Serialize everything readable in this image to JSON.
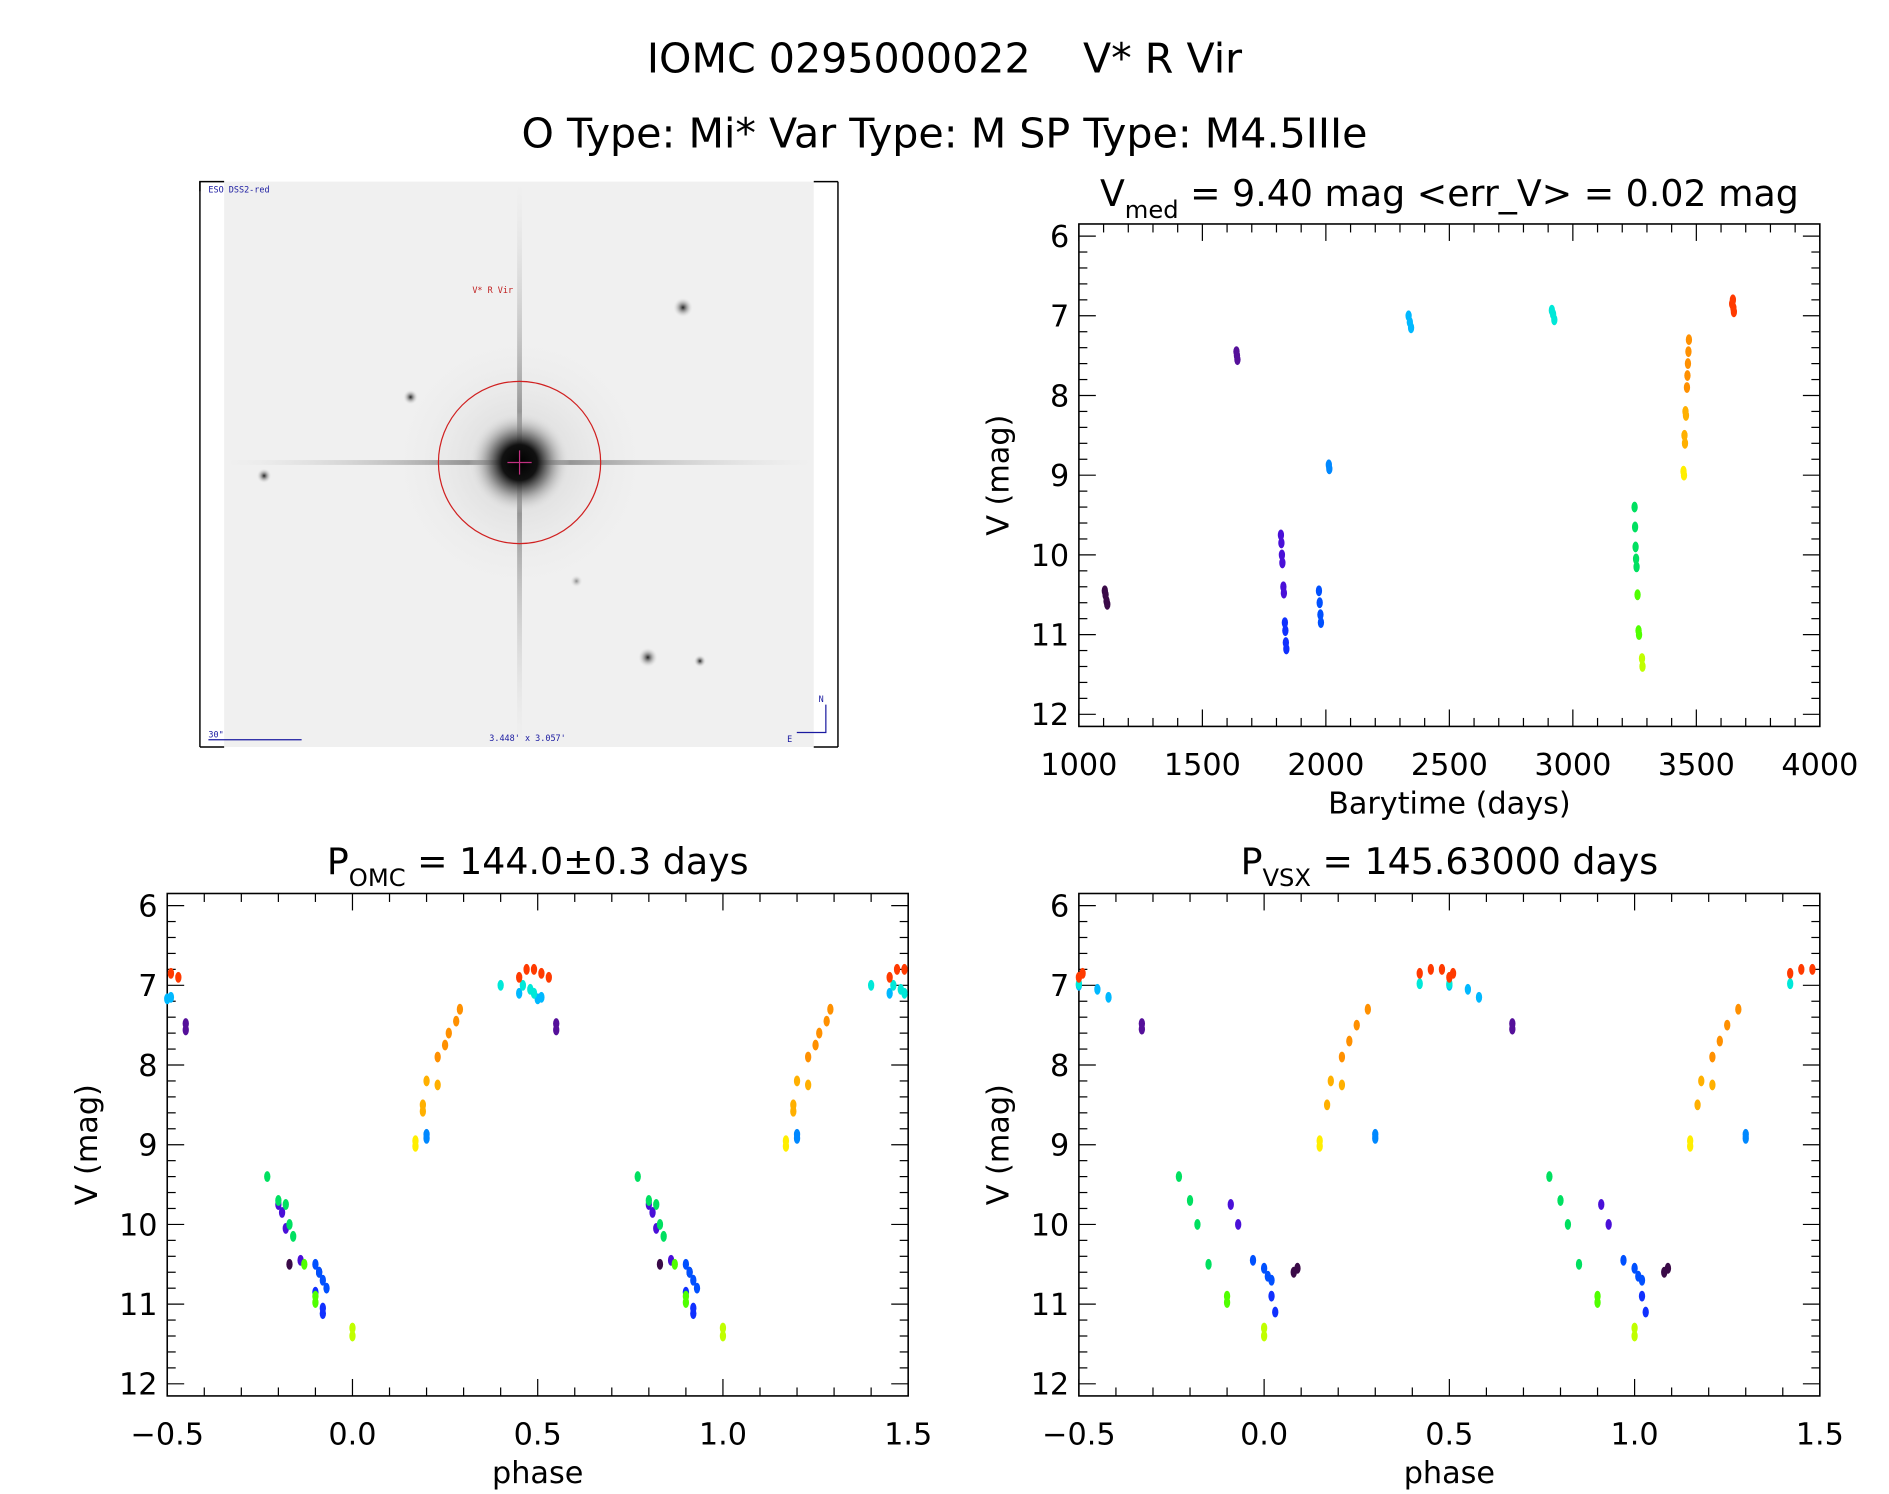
{
  "header": {
    "title": "IOMC 0295000022    V* R Vir",
    "subtitle": "O Type: Mi*  Var Type: M  SP Type: M4.5IIIe"
  },
  "image_panel": {
    "survey_label": "ESO DSS2-red",
    "object_label": "V* R Vir",
    "scale_label": "30\"",
    "field_label": "3.448' x 3.057'",
    "north_label": "N",
    "east_label": "E",
    "survey_color": "#1a1aa0",
    "object_color": "#c02020",
    "circle_color": "#d02020"
  },
  "chart_data": [
    {
      "id": "lightcurve",
      "type": "scatter",
      "title_main": "V",
      "title_sub": "med",
      "title_rest": " = 9.40 mag <err_V> = 0.02 mag",
      "xlabel": "Barytime (days)",
      "ylabel": "V (mag)",
      "xlim": [
        1000,
        4000
      ],
      "ylim": [
        12,
        6
      ],
      "y_inverted": true,
      "xticks": [
        "1000",
        "1500",
        "2000",
        "2500",
        "3000",
        "3500",
        "4000"
      ],
      "yticks": [
        "6",
        "7",
        "8",
        "9",
        "10",
        "11",
        "12"
      ],
      "grid": false
    },
    {
      "id": "phase-omc",
      "type": "scatter",
      "title_main": "P",
      "title_sub": "OMC",
      "title_rest": " = 144.0±0.3 days",
      "xlabel": "phase",
      "ylabel": "V (mag)",
      "xlim": [
        -0.5,
        1.5
      ],
      "ylim": [
        12,
        6
      ],
      "y_inverted": true,
      "xticks": [
        "−0.5",
        "0.0",
        "0.5",
        "1.0",
        "1.5"
      ],
      "yticks": [
        "6",
        "7",
        "8",
        "9",
        "10",
        "11",
        "12"
      ],
      "grid": false
    },
    {
      "id": "phase-vsx",
      "type": "scatter",
      "title_main": "P",
      "title_sub": "VSX",
      "title_rest": " = 145.63000 days",
      "xlabel": "phase",
      "ylabel": "V (mag)",
      "xlim": [
        -0.5,
        1.5
      ],
      "ylim": [
        12,
        6
      ],
      "y_inverted": true,
      "xticks": [
        "−0.5",
        "0.0",
        "0.5",
        "1.0",
        "1.5"
      ],
      "yticks": [
        "6",
        "7",
        "8",
        "9",
        "10",
        "11",
        "12"
      ],
      "grid": false
    }
  ],
  "series": [
    {
      "color": "#3a0a48",
      "time": [
        [
          1105,
          10.45
        ],
        [
          1108,
          10.5
        ],
        [
          1112,
          10.58
        ],
        [
          1115,
          10.62
        ]
      ],
      "omc": [
        [
          -0.17,
          10.5
        ],
        [
          -0.09,
          10.6
        ]
      ],
      "vsx": [
        [
          0.08,
          10.6
        ],
        [
          0.09,
          10.55
        ]
      ]
    },
    {
      "color": "#55109a",
      "time": [
        [
          1638,
          7.45
        ],
        [
          1640,
          7.5
        ],
        [
          1642,
          7.55
        ]
      ],
      "omc": [
        [
          -0.45,
          7.48
        ],
        [
          -0.45,
          7.56
        ]
      ],
      "vsx": [
        [
          -0.33,
          7.48
        ],
        [
          -0.33,
          7.55
        ]
      ]
    },
    {
      "color": "#4a10d8",
      "time": [
        [
          1818,
          9.75
        ],
        [
          1820,
          9.85
        ],
        [
          1822,
          10.0
        ],
        [
          1824,
          10.1
        ],
        [
          1828,
          10.4
        ],
        [
          1830,
          10.48
        ]
      ],
      "omc": [
        [
          -0.2,
          9.75
        ],
        [
          -0.19,
          9.85
        ],
        [
          -0.18,
          10.05
        ],
        [
          -0.14,
          10.45
        ]
      ],
      "vsx": [
        [
          -0.09,
          9.75
        ],
        [
          -0.07,
          10.0
        ]
      ]
    },
    {
      "color": "#1030ff",
      "time": [
        [
          1834,
          10.85
        ],
        [
          1836,
          10.95
        ],
        [
          1838,
          11.1
        ],
        [
          1840,
          11.18
        ]
      ],
      "omc": [
        [
          -0.1,
          10.85
        ],
        [
          -0.08,
          11.05
        ],
        [
          -0.08,
          11.12
        ]
      ],
      "vsx": [
        [
          0.02,
          10.9
        ],
        [
          0.03,
          11.1
        ]
      ]
    },
    {
      "color": "#0050ff",
      "time": [
        [
          1972,
          10.45
        ],
        [
          1975,
          10.6
        ],
        [
          1978,
          10.75
        ],
        [
          1980,
          10.85
        ]
      ],
      "omc": [
        [
          -0.1,
          10.5
        ],
        [
          -0.09,
          10.6
        ],
        [
          -0.08,
          10.7
        ],
        [
          -0.07,
          10.8
        ]
      ],
      "vsx": [
        [
          -0.03,
          10.45
        ],
        [
          0.0,
          10.55
        ],
        [
          0.01,
          10.65
        ],
        [
          0.02,
          10.7
        ]
      ]
    },
    {
      "color": "#0088ff",
      "time": [
        [
          2012,
          8.87
        ],
        [
          2014,
          8.92
        ]
      ],
      "omc": [
        [
          0.2,
          8.87
        ],
        [
          0.2,
          8.92
        ]
      ],
      "vsx": [
        [
          0.3,
          8.87
        ],
        [
          0.3,
          8.92
        ]
      ]
    },
    {
      "color": "#00b8ff",
      "time": [
        [
          2335,
          7.0
        ],
        [
          2340,
          7.08
        ],
        [
          2345,
          7.15
        ]
      ],
      "omc": [
        [
          -0.49,
          7.15
        ],
        [
          0.45,
          7.1
        ],
        [
          0.5,
          7.17
        ]
      ],
      "vsx": [
        [
          0.5,
          7.0
        ],
        [
          0.55,
          7.05
        ],
        [
          0.58,
          7.15
        ]
      ]
    },
    {
      "color": "#00e8d8",
      "time": [
        [
          2915,
          6.93
        ],
        [
          2920,
          6.98
        ],
        [
          2925,
          7.05
        ]
      ],
      "omc": [
        [
          0.4,
          7.0
        ],
        [
          0.46,
          7.0
        ],
        [
          0.48,
          7.05
        ],
        [
          0.49,
          7.1
        ]
      ],
      "vsx": [
        [
          0.42,
          6.98
        ],
        [
          0.5,
          6.98
        ]
      ]
    },
    {
      "color": "#00e060",
      "time": [
        [
          3250,
          9.4
        ],
        [
          3252,
          9.65
        ],
        [
          3254,
          9.9
        ],
        [
          3256,
          10.05
        ],
        [
          3258,
          10.15
        ]
      ],
      "omc": [
        [
          -0.23,
          9.4
        ],
        [
          -0.2,
          9.7
        ],
        [
          -0.18,
          9.75
        ],
        [
          -0.17,
          10.0
        ],
        [
          -0.16,
          10.15
        ]
      ],
      "vsx": [
        [
          -0.23,
          9.4
        ],
        [
          -0.2,
          9.7
        ],
        [
          -0.18,
          10.0
        ],
        [
          -0.15,
          10.5
        ]
      ]
    },
    {
      "color": "#50ff00",
      "time": [
        [
          3262,
          10.5
        ],
        [
          3266,
          10.95
        ],
        [
          3268,
          11.0
        ]
      ],
      "omc": [
        [
          -0.13,
          10.5
        ],
        [
          -0.1,
          10.9
        ],
        [
          -0.1,
          10.98
        ]
      ],
      "vsx": [
        [
          -0.1,
          10.9
        ],
        [
          -0.1,
          10.98
        ]
      ]
    },
    {
      "color": "#c0ff00",
      "time": [
        [
          3280,
          11.3
        ],
        [
          3282,
          11.4
        ]
      ],
      "omc": [
        [
          0.0,
          11.3
        ],
        [
          0.0,
          11.4
        ]
      ],
      "vsx": [
        [
          0.0,
          11.3
        ],
        [
          0.0,
          11.4
        ]
      ]
    },
    {
      "color": "#ffee00",
      "time": [
        [
          3448,
          8.95
        ],
        [
          3450,
          9.0
        ]
      ],
      "omc": [
        [
          0.17,
          8.95
        ],
        [
          0.17,
          9.02
        ]
      ],
      "vsx": [
        [
          0.15,
          8.95
        ],
        [
          0.15,
          9.02
        ]
      ]
    },
    {
      "color": "#ffb000",
      "time": [
        [
          3452,
          8.5
        ],
        [
          3454,
          8.6
        ],
        [
          3456,
          8.2
        ],
        [
          3458,
          8.25
        ]
      ],
      "omc": [
        [
          0.19,
          8.5
        ],
        [
          0.19,
          8.58
        ],
        [
          0.2,
          8.2
        ],
        [
          0.23,
          8.25
        ]
      ],
      "vsx": [
        [
          0.17,
          8.5
        ],
        [
          0.18,
          8.2
        ],
        [
          0.21,
          8.25
        ]
      ]
    },
    {
      "color": "#ff9000",
      "time": [
        [
          3462,
          7.9
        ],
        [
          3464,
          7.75
        ],
        [
          3466,
          7.6
        ],
        [
          3468,
          7.45
        ],
        [
          3470,
          7.3
        ]
      ],
      "omc": [
        [
          0.23,
          7.9
        ],
        [
          0.25,
          7.75
        ],
        [
          0.26,
          7.6
        ],
        [
          0.28,
          7.45
        ],
        [
          0.29,
          7.3
        ]
      ],
      "vsx": [
        [
          0.21,
          7.9
        ],
        [
          0.23,
          7.7
        ],
        [
          0.25,
          7.5
        ],
        [
          0.28,
          7.3
        ]
      ]
    },
    {
      "color": "#ff3a00",
      "time": [
        [
          3645,
          6.85
        ],
        [
          3648,
          6.8
        ],
        [
          3650,
          6.9
        ],
        [
          3652,
          6.95
        ]
      ],
      "omc": [
        [
          0.45,
          6.9
        ],
        [
          0.47,
          6.8
        ],
        [
          0.49,
          6.8
        ],
        [
          0.51,
          6.85
        ],
        [
          0.53,
          6.9
        ]
      ],
      "vsx": [
        [
          0.42,
          6.85
        ],
        [
          0.45,
          6.8
        ],
        [
          0.48,
          6.8
        ],
        [
          0.51,
          6.85
        ],
        [
          0.5,
          6.9
        ]
      ]
    }
  ]
}
